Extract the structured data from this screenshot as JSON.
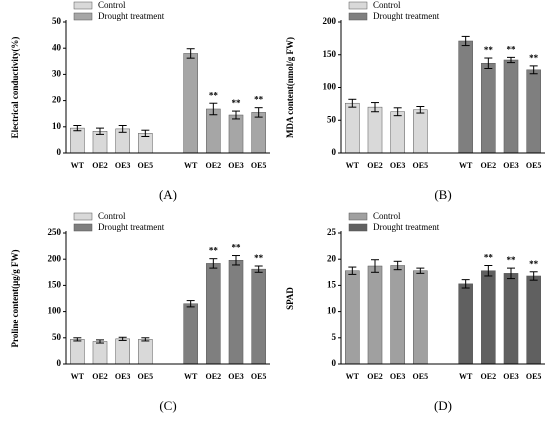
{
  "chart_data": [
    {
      "type": "bar",
      "panel_label": "(A)",
      "ylabel": "Electrical conductivity(%)",
      "categories": [
        "WT",
        "OE2",
        "OE3",
        "OE5",
        "WT",
        "OE2",
        "OE3",
        "OE5"
      ],
      "series": [
        {
          "name": "Control",
          "color": "#d9d9d9",
          "values": [
            9.5,
            8.3,
            9.2,
            7.5,
            null,
            null,
            null,
            null
          ],
          "errors": [
            1,
            1.2,
            1.3,
            1.2,
            null,
            null,
            null,
            null
          ],
          "significance": [
            null,
            null,
            null,
            null,
            null,
            null,
            null,
            null
          ]
        },
        {
          "name": "Drought treatment",
          "color": "#a6a6a6",
          "values": [
            null,
            null,
            null,
            null,
            38,
            16.8,
            14.5,
            15.5
          ],
          "errors": [
            null,
            null,
            null,
            null,
            1.8,
            2.2,
            1.5,
            1.8
          ],
          "significance": [
            null,
            null,
            null,
            null,
            null,
            "**",
            "**",
            "**"
          ]
        }
      ],
      "ylim": [
        0,
        50
      ],
      "yticks": [
        0,
        10,
        20,
        30,
        40,
        50
      ]
    },
    {
      "type": "bar",
      "panel_label": "(B)",
      "ylabel": "MDA content(nmol/g FW)",
      "categories": [
        "WT",
        "OE2",
        "OE3",
        "OE5",
        "WT",
        "OE2",
        "OE3",
        "OE5"
      ],
      "series": [
        {
          "name": "Control",
          "color": "#d9d9d9",
          "values": [
            76,
            70,
            63,
            66,
            null,
            null,
            null,
            null
          ],
          "errors": [
            6,
            7,
            6,
            5,
            null,
            null,
            null,
            null
          ],
          "significance": [
            null,
            null,
            null,
            null,
            null,
            null,
            null,
            null
          ]
        },
        {
          "name": "Drought treatment",
          "color": "#7f7f7f",
          "values": [
            null,
            null,
            null,
            null,
            171,
            137,
            142,
            127
          ],
          "errors": [
            null,
            null,
            null,
            null,
            7,
            8,
            4,
            6
          ],
          "significance": [
            null,
            null,
            null,
            null,
            null,
            "**",
            "**",
            "**"
          ]
        }
      ],
      "ylim": [
        0,
        200
      ],
      "yticks": [
        0,
        50,
        100,
        150,
        200
      ]
    },
    {
      "type": "bar",
      "panel_label": "(C)",
      "ylabel": "Proline content(μg/g FW)",
      "categories": [
        "WT",
        "OE2",
        "OE3",
        "OE5",
        "WT",
        "OE2",
        "OE3",
        "OE5"
      ],
      "series": [
        {
          "name": "Control",
          "color": "#d9d9d9",
          "values": [
            47,
            43,
            48,
            47,
            null,
            null,
            null,
            null
          ],
          "errors": [
            3,
            3,
            3,
            3,
            null,
            null,
            null,
            null
          ],
          "significance": [
            null,
            null,
            null,
            null,
            null,
            null,
            null,
            null
          ]
        },
        {
          "name": "Drought treatment",
          "color": "#7f7f7f",
          "values": [
            null,
            null,
            null,
            null,
            115,
            192,
            198,
            181
          ],
          "errors": [
            null,
            null,
            null,
            null,
            6,
            9,
            9,
            6
          ],
          "significance": [
            null,
            null,
            null,
            null,
            null,
            "**",
            "**",
            "**"
          ]
        }
      ],
      "ylim": [
        0,
        250
      ],
      "yticks": [
        0,
        50,
        100,
        150,
        200,
        250
      ]
    },
    {
      "type": "bar",
      "panel_label": "(D)",
      "ylabel": "SPAD",
      "categories": [
        "WT",
        "OE2",
        "OE3",
        "OE5",
        "WT",
        "OE2",
        "OE3",
        "OE5"
      ],
      "series": [
        {
          "name": "Control",
          "color": "#a0a0a0",
          "values": [
            17.8,
            18.7,
            18.8,
            17.8,
            null,
            null,
            null,
            null
          ],
          "errors": [
            0.7,
            1.2,
            0.8,
            0.5,
            null,
            null,
            null,
            null
          ],
          "significance": [
            null,
            null,
            null,
            null,
            null,
            null,
            null,
            null
          ]
        },
        {
          "name": "Drought treatment",
          "color": "#606060",
          "values": [
            null,
            null,
            null,
            null,
            15.3,
            17.8,
            17.3,
            16.8
          ],
          "errors": [
            null,
            null,
            null,
            null,
            0.8,
            1,
            1,
            0.8
          ],
          "significance": [
            null,
            null,
            null,
            null,
            null,
            "**",
            "**",
            "**"
          ]
        }
      ],
      "ylim": [
        0,
        25
      ],
      "yticks": [
        0,
        5,
        10,
        15,
        20,
        25
      ]
    }
  ]
}
